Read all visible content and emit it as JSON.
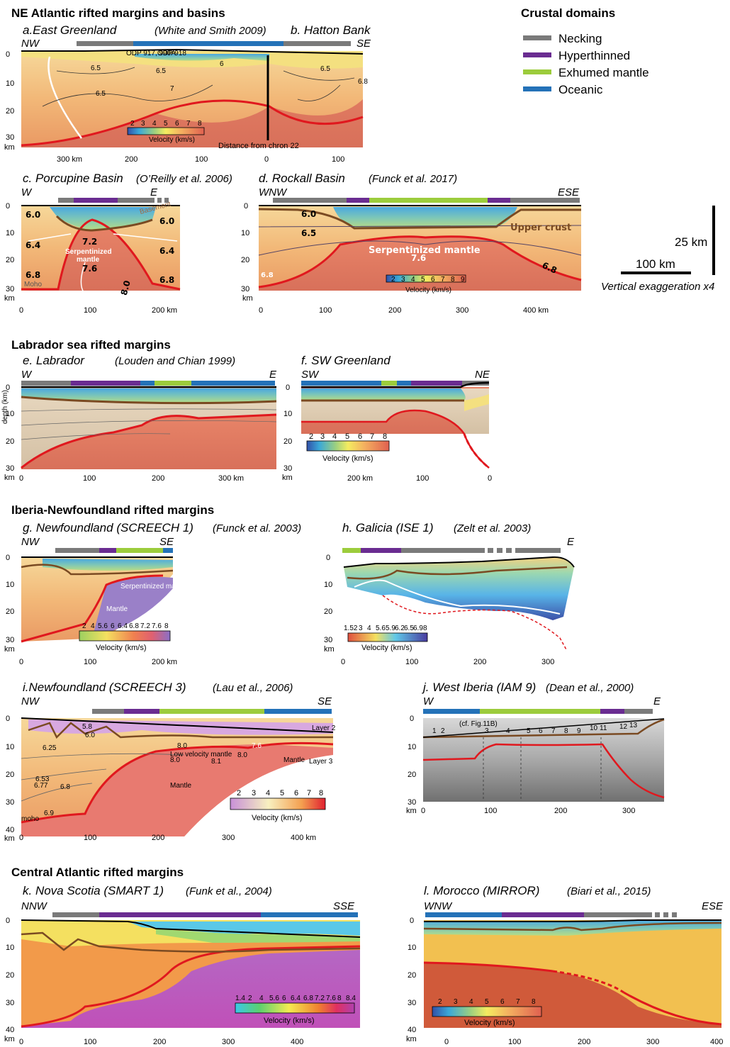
{
  "colors": {
    "necking": "#7a7a7a",
    "hyperthinned": "#6a2c91",
    "exhumed": "#9ccc3c",
    "oceanic": "#2472b8",
    "moho": "#e0181e",
    "basement": "#7a4a22",
    "crust": "#f0b070",
    "mantle": "#e07060",
    "sediment": "#5ab4e0"
  },
  "legend": {
    "title": "Crustal domains",
    "items": [
      {
        "label": "Necking",
        "color": "#7a7a7a"
      },
      {
        "label": "Hyperthinned",
        "color": "#6a2c91"
      },
      {
        "label": "Exhumed mantle",
        "color": "#9ccc3c"
      },
      {
        "label": "Oceanic",
        "color": "#2472b8"
      }
    ]
  },
  "scale": {
    "vertical": "25 km",
    "horizontal": "100 km",
    "note": "Vertical exaggeration x4"
  },
  "sections": [
    {
      "id": "ne",
      "title": "NE Atlantic rifted margins and basins"
    },
    {
      "id": "lab",
      "title": "Labrador sea rifted margins"
    },
    {
      "id": "iberia",
      "title": "Iberia-Newfoundland rifted margins"
    },
    {
      "id": "central",
      "title": "Central Atlantic rifted margins"
    }
  ],
  "panels": {
    "a": {
      "title": "a.East Greenland",
      "ref": "(White and Smith 2009)",
      "title2": "b. Hatton Bank",
      "left": "NW",
      "right": "SE",
      "yticks": [
        "0",
        "10",
        "20",
        "30",
        "km"
      ],
      "xticks": [
        "300 km",
        "200",
        "100",
        "0",
        "100"
      ],
      "velocity_ticks": [
        "2",
        "3",
        "4",
        "5",
        "6",
        "7",
        "8"
      ],
      "velocity_label": "Velocity (km/s)",
      "distance_label": "Distance from chron 22",
      "site_labels": [
        "ODP 917, 990A",
        "ODP 918"
      ],
      "contours": [
        "6.5",
        "6.5",
        "7",
        "6.5",
        "6",
        "6.5",
        "6.8"
      ]
    },
    "c": {
      "title": "c. Porcupine Basin",
      "ref": "(O’Reilly et al. 2006)",
      "left": "W",
      "right": "E",
      "yticks": [
        "0",
        "10",
        "20",
        "30",
        "km"
      ],
      "xticks": [
        "0",
        "100",
        "200 km"
      ],
      "values": [
        "6.0",
        "6.0",
        "6.4",
        "6.4",
        "6.8",
        "6.8",
        "7.2",
        "7.6",
        "8.0"
      ],
      "labels": [
        "Serpentinized",
        "mantle",
        "Basement",
        "Moho"
      ]
    },
    "d": {
      "title": "d. Rockall Basin",
      "ref": "(Funck et al. 2017)",
      "left": "WNW",
      "right": "ESE",
      "yticks": [
        "0",
        "10",
        "20",
        "30",
        "km"
      ],
      "xticks": [
        "0",
        "100",
        "200",
        "300",
        "400 km"
      ],
      "values": [
        "6.0",
        "6.5",
        "7.6",
        "6.8",
        "6.8"
      ],
      "labels": [
        "Upper crust",
        "Serpentinized mantle"
      ],
      "velocity_ticks": [
        "2",
        "3",
        "4",
        "5",
        "6",
        "7",
        "8",
        "9"
      ],
      "velocity_label": "Velocity (km/s)"
    },
    "e": {
      "title": "e. Labrador",
      "ref": "(Louden and Chian 1999)",
      "left": "W",
      "right": "E",
      "yticks": [
        "0",
        "10",
        "20",
        "30",
        "km"
      ],
      "xticks": [
        "0",
        "100",
        "200",
        "300 km"
      ],
      "ylabel": "depth (km)"
    },
    "f": {
      "title": "f. SW Greenland",
      "left": "SW",
      "right": "NE",
      "yticks": [
        "0",
        "10",
        "20",
        "30",
        "km"
      ],
      "xticks": [
        "200 km",
        "100",
        "0"
      ],
      "velocity_ticks": [
        "2",
        "3",
        "4",
        "5",
        "6",
        "7",
        "8"
      ],
      "velocity_label": "Velocity (km/s)"
    },
    "g": {
      "title": "g. Newfoundland (SCREECH 1)",
      "ref": "(Funck et al. 2003)",
      "left": "NW",
      "right": "SE",
      "yticks": [
        "0",
        "10",
        "20",
        "30",
        "km"
      ],
      "xticks": [
        "0",
        "100",
        "200 km"
      ],
      "velocity_ticks": [
        "2",
        "4",
        "5.6",
        "6",
        "6.4",
        "6.8",
        "7.2",
        "7.6",
        "8"
      ],
      "velocity_label": "Velocity (km/s)",
      "labels": [
        "Serpentinized mantle",
        "Mantle"
      ]
    },
    "h": {
      "title": "h. Galicia (ISE 1)",
      "ref": "(Zelt et al. 2003)",
      "right": "E",
      "yticks": [
        "0",
        "10",
        "20",
        "30",
        "km"
      ],
      "xticks": [
        "0",
        "100",
        "200",
        "300"
      ],
      "velocity_ticks": [
        "1.52",
        "3",
        "4",
        "5.6",
        "5.9",
        "6.2",
        "6.5",
        "6.9",
        "8"
      ],
      "velocity_label": "Velocity (km/s)"
    },
    "i": {
      "title": "i.Newfoundland (SCREECH 3)",
      "ref": "(Lau et al., 2006)",
      "left": "NW",
      "right": "SE",
      "yticks": [
        "0",
        "10",
        "20",
        "30",
        "40",
        "km"
      ],
      "xticks": [
        "0",
        "100",
        "200",
        "300",
        "400 km"
      ],
      "values": [
        "5.8",
        "6.0",
        "6.25",
        "6.53",
        "6.77",
        "6.8",
        "6.9",
        "8.0",
        "8.0",
        "8.0",
        "8.1",
        "7.6"
      ],
      "labels": [
        "Low velocity mantle",
        "Mantle",
        "Mantle",
        "Layer 3",
        "Layer 2",
        "moho"
      ],
      "velocity_ticks": [
        "2",
        "3",
        "4",
        "5",
        "6",
        "7",
        "8"
      ],
      "velocity_label": "Velocity (km/s)"
    },
    "j": {
      "title": "j. West Iberia (IAM 9)",
      "ref": "(Dean et al., 2000)",
      "left": "W",
      "right": "E",
      "yticks": [
        "0",
        "10",
        "20",
        "30",
        "km"
      ],
      "xticks": [
        "0",
        "100",
        "200",
        "300"
      ],
      "obs": [
        "1",
        "2",
        "3",
        "4",
        "5",
        "6",
        "7",
        "8",
        "9",
        "10",
        "11",
        "12",
        "13"
      ],
      "cf_label": "(cf. Fig.11B)"
    },
    "k": {
      "title": "k. Nova Scotia (SMART 1)",
      "ref": "(Funk et al., 2004)",
      "left": "NNW",
      "right": "SSE",
      "yticks": [
        "0",
        "10",
        "20",
        "30",
        "40",
        "km"
      ],
      "xticks": [
        "0",
        "100",
        "200",
        "300",
        "400"
      ],
      "velocity_ticks": [
        "1.4",
        "2",
        "4",
        "5.6",
        "6",
        "6.4",
        "6.8",
        "7.2",
        "7.6",
        "8",
        "8.4"
      ],
      "velocity_label": "Velocity (km/s)"
    },
    "l": {
      "title": "l. Morocco (MIRROR)",
      "ref": "(Biari et al., 2015)",
      "left": "WNW",
      "right": "ESE",
      "yticks": [
        "0",
        "10",
        "20",
        "30",
        "40",
        "km"
      ],
      "xticks": [
        "0",
        "100",
        "200",
        "300",
        "400"
      ],
      "velocity_ticks": [
        "2",
        "3",
        "4",
        "5",
        "6",
        "7",
        "8"
      ],
      "velocity_label": "Velocity (km/s)"
    }
  }
}
